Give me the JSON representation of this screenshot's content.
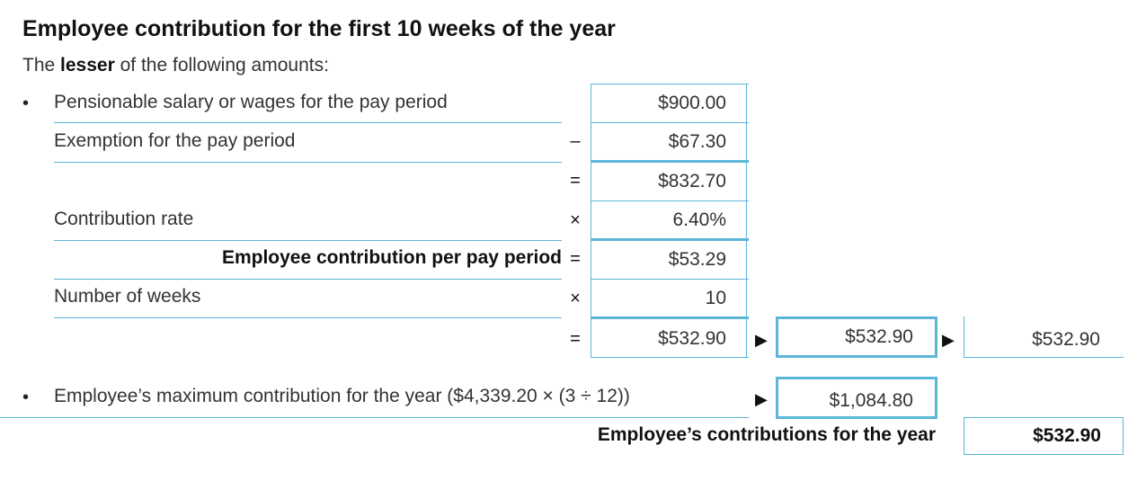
{
  "title": "Employee contribution for the first 10 weeks of the year",
  "subtitle": {
    "prefix": "The",
    "emphasis": "lesser",
    "suffix": "of the following amounts:"
  },
  "bullet": "•",
  "rows": {
    "salary_label": "Pensionable salary or wages for the pay period",
    "salary_value": "$900.00",
    "exemption_label": "Exemption for the pay period",
    "exemption_op": "–",
    "exemption_value": "$67.30",
    "subtotal_op": "=",
    "subtotal_value": "$832.70",
    "rate_label": "Contribution rate",
    "rate_op": "×",
    "rate_value": "6.40%",
    "per_period_label": "Employee contribution per pay period",
    "per_period_op": "=",
    "per_period_value": "$53.29",
    "weeks_label": "Number of weeks",
    "weeks_op": "×",
    "weeks_value": "10",
    "total_op": "=",
    "total_value": "$532.90",
    "arrow": "▶",
    "lesser_candidate_1": "$532.90",
    "result_value": "$532.90"
  },
  "max_row": {
    "label": "Employee’s maximum contribution for the year ($4,339.20 × (3 ÷ 12))",
    "arrow": "▶",
    "value": "$1,084.80"
  },
  "final": {
    "label": "Employee’s contributions for the year",
    "value": "$532.90"
  },
  "colors": {
    "accent": "#5bb6d9",
    "text": "#333333"
  }
}
